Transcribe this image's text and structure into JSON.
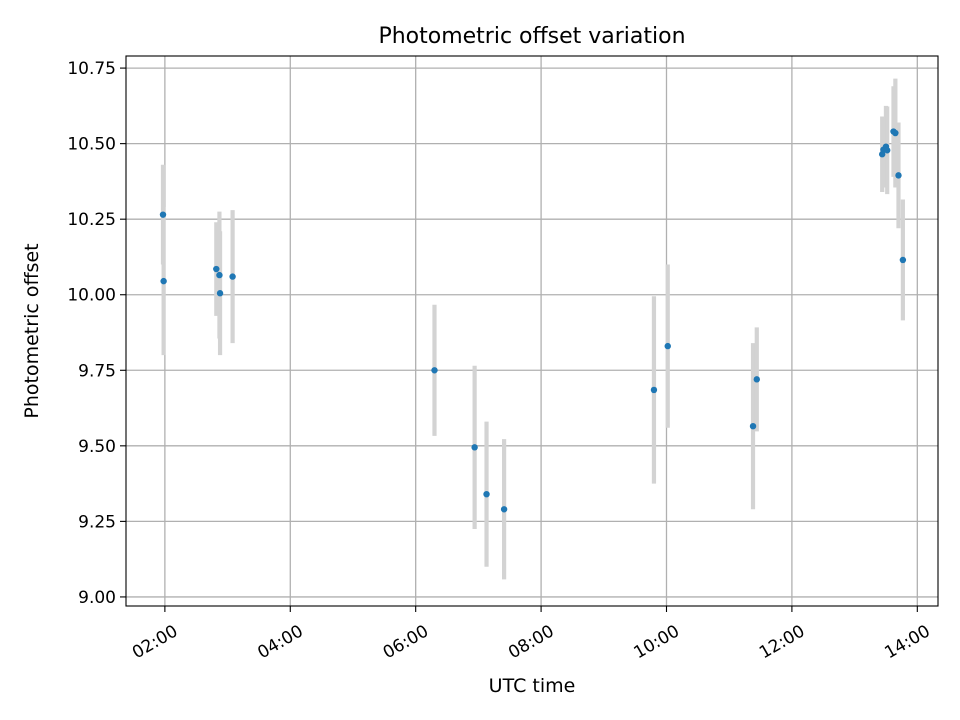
{
  "chart_data": {
    "type": "scatter",
    "title": "Photometric offset variation",
    "xlabel": "UTC time",
    "ylabel": "Photometric offset",
    "x_unit": "hours UTC",
    "xlim": [
      1.38,
      14.33
    ],
    "ylim": [
      8.97,
      10.79
    ],
    "x_ticks": [
      {
        "value": 2,
        "label": "02:00"
      },
      {
        "value": 4,
        "label": "04:00"
      },
      {
        "value": 6,
        "label": "06:00"
      },
      {
        "value": 8,
        "label": "08:00"
      },
      {
        "value": 10,
        "label": "10:00"
      },
      {
        "value": 12,
        "label": "12:00"
      },
      {
        "value": 14,
        "label": "14:00"
      }
    ],
    "y_ticks": [
      {
        "value": 9.0,
        "label": "9.00"
      },
      {
        "value": 9.25,
        "label": "9.25"
      },
      {
        "value": 9.5,
        "label": "9.50"
      },
      {
        "value": 9.75,
        "label": "9.75"
      },
      {
        "value": 10.0,
        "label": "10.00"
      },
      {
        "value": 10.25,
        "label": "10.25"
      },
      {
        "value": 10.5,
        "label": "10.50"
      },
      {
        "value": 10.75,
        "label": "10.75"
      }
    ],
    "grid": true,
    "colors": {
      "point": "#1f77b4",
      "errorbar": "#d3d3d3",
      "grid": "#b0b0b0"
    },
    "points": [
      {
        "time": "01:58",
        "x": 1.97,
        "y": 10.265,
        "err": 0.165
      },
      {
        "time": "01:59",
        "x": 1.98,
        "y": 10.045,
        "err": 0.245
      },
      {
        "time": "02:49",
        "x": 2.82,
        "y": 10.085,
        "err": 0.155
      },
      {
        "time": "02:52",
        "x": 2.87,
        "y": 10.065,
        "err": 0.21
      },
      {
        "time": "02:53",
        "x": 2.88,
        "y": 10.005,
        "err": 0.205
      },
      {
        "time": "03:05",
        "x": 3.08,
        "y": 10.06,
        "err": 0.22
      },
      {
        "time": "06:18",
        "x": 6.3,
        "y": 9.75,
        "err": 0.217
      },
      {
        "time": "06:56",
        "x": 6.94,
        "y": 9.495,
        "err": 0.27
      },
      {
        "time": "07:08",
        "x": 7.13,
        "y": 9.34,
        "err": 0.24
      },
      {
        "time": "07:25",
        "x": 7.41,
        "y": 9.29,
        "err": 0.232
      },
      {
        "time": "09:48",
        "x": 9.8,
        "y": 9.685,
        "err": 0.31
      },
      {
        "time": "10:01",
        "x": 10.02,
        "y": 9.83,
        "err": 0.27
      },
      {
        "time": "11:23",
        "x": 11.38,
        "y": 9.565,
        "err": 0.275
      },
      {
        "time": "11:26",
        "x": 11.44,
        "y": 9.72,
        "err": 0.172
      },
      {
        "time": "13:26",
        "x": 13.44,
        "y": 10.465,
        "err": 0.125
      },
      {
        "time": "13:28",
        "x": 13.46,
        "y": 10.48,
        "err": 0.11
      },
      {
        "time": "13:30",
        "x": 13.5,
        "y": 10.49,
        "err": 0.135
      },
      {
        "time": "13:31",
        "x": 13.52,
        "y": 10.478,
        "err": 0.145
      },
      {
        "time": "13:37",
        "x": 13.62,
        "y": 10.54,
        "err": 0.15
      },
      {
        "time": "13:39",
        "x": 13.65,
        "y": 10.535,
        "err": 0.18
      },
      {
        "time": "13:42",
        "x": 13.7,
        "y": 10.395,
        "err": 0.175
      },
      {
        "time": "13:46",
        "x": 13.77,
        "y": 10.115,
        "err": 0.2
      }
    ]
  }
}
